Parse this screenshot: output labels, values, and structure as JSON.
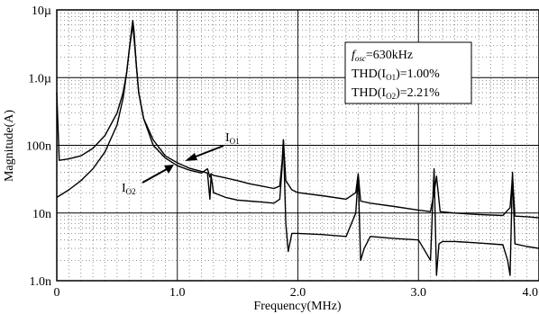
{
  "chart_data": {
    "type": "line",
    "xlabel": "Frequency(MHz)",
    "ylabel": "Magnitude(A)",
    "x_scale": "linear",
    "y_scale": "log",
    "xlim": [
      0,
      4.0
    ],
    "ylim": [
      1e-09,
      1e-05
    ],
    "x_ticks": [
      {
        "value": 0,
        "label": "0"
      },
      {
        "value": 1.0,
        "label": "1.0"
      },
      {
        "value": 2.0,
        "label": "2.0"
      },
      {
        "value": 3.0,
        "label": "3.0"
      },
      {
        "value": 4.0,
        "label": "4.0"
      }
    ],
    "y_ticks": [
      {
        "value": 1e-05,
        "label": "10µ"
      },
      {
        "value": 1e-06,
        "label": "1.0µ"
      },
      {
        "value": 1e-07,
        "label": "100n"
      },
      {
        "value": 1e-08,
        "label": "10n"
      },
      {
        "value": 1e-09,
        "label": "1.0n"
      }
    ],
    "grid": true,
    "series": [
      {
        "name": "IO1",
        "label_main": "I",
        "label_sub": "O1",
        "color": "#000000",
        "x": [
          0.0,
          0.02,
          0.1,
          0.2,
          0.3,
          0.4,
          0.5,
          0.55,
          0.58,
          0.6,
          0.62,
          0.63,
          0.64,
          0.66,
          0.68,
          0.72,
          0.8,
          0.9,
          1.0,
          1.1,
          1.2,
          1.25,
          1.27,
          1.28,
          1.3,
          1.4,
          1.5,
          1.6,
          1.7,
          1.8,
          1.85,
          1.87,
          1.88,
          1.9,
          1.95,
          2.0,
          2.2,
          2.4,
          2.48,
          2.5,
          2.52,
          2.6,
          2.8,
          3.0,
          3.1,
          3.13,
          3.15,
          3.18,
          3.3,
          3.5,
          3.7,
          3.76,
          3.78,
          3.8,
          3.9,
          4.0
        ],
        "y": [
          6e-07,
          6e-08,
          6.3e-08,
          7e-08,
          9e-08,
          1.4e-07,
          3e-07,
          6e-07,
          1.2e-06,
          2.5e-06,
          5e-06,
          7e-06,
          5e-06,
          1.5e-06,
          6e-07,
          2.5e-07,
          1e-07,
          6.5e-08,
          5e-08,
          4.3e-08,
          3.9e-08,
          4.5e-08,
          3.4e-08,
          3.8e-08,
          3.6e-08,
          3.3e-08,
          3e-08,
          2.7e-08,
          2.5e-08,
          2.3e-08,
          2.5e-08,
          6e-08,
          1.2e-07,
          3e-08,
          2.2e-08,
          2e-08,
          1.8e-08,
          1.6e-08,
          2e-08,
          3.8e-08,
          1.5e-08,
          1.4e-08,
          1.25e-08,
          1.1e-08,
          1.05e-08,
          2e-08,
          3.5e-08,
          1.05e-08,
          1e-08,
          9.5e-09,
          9.2e-09,
          1.2e-08,
          3.5e-08,
          9e-09,
          8.8e-09,
          8.5e-09
        ]
      },
      {
        "name": "IO2",
        "label_main": "I",
        "label_sub": "O2",
        "color": "#000000",
        "x": [
          0.0,
          0.1,
          0.2,
          0.3,
          0.4,
          0.5,
          0.55,
          0.58,
          0.6,
          0.62,
          0.63,
          0.64,
          0.66,
          0.68,
          0.72,
          0.8,
          0.9,
          1.0,
          1.1,
          1.2,
          1.25,
          1.27,
          1.28,
          1.3,
          1.4,
          1.5,
          1.6,
          1.7,
          1.8,
          1.85,
          1.87,
          1.88,
          1.9,
          1.92,
          1.95,
          2.0,
          2.2,
          2.4,
          2.48,
          2.5,
          2.52,
          2.55,
          2.6,
          2.8,
          3.0,
          3.1,
          3.13,
          3.15,
          3.17,
          3.2,
          3.3,
          3.5,
          3.7,
          3.74,
          3.76,
          3.78,
          3.8,
          3.9,
          4.0
        ],
        "y": [
          1.7e-08,
          2.2e-08,
          3e-08,
          4.5e-08,
          8e-08,
          2e-07,
          5e-07,
          1.2e-06,
          2.5e-06,
          4.5e-06,
          6e-06,
          4e-06,
          1.5e-06,
          6e-07,
          2.5e-07,
          1.2e-07,
          7e-08,
          5.5e-08,
          4.6e-08,
          4.1e-08,
          3.9e-08,
          1.6e-08,
          3.6e-08,
          2e-08,
          1.7e-08,
          1.55e-08,
          1.5e-08,
          1.45e-08,
          1.4e-08,
          1.6e-08,
          5e-08,
          1.2e-07,
          7e-09,
          2.7e-09,
          5e-09,
          5e-09,
          4.8e-09,
          4.5e-09,
          1e-08,
          3.5e-08,
          2e-09,
          3e-09,
          4.5e-09,
          4.2e-09,
          4e-09,
          2e-09,
          4.5e-08,
          1.2e-09,
          3.5e-09,
          3.8e-09,
          3.8e-09,
          3.6e-09,
          3.4e-09,
          2e-09,
          1.2e-09,
          4e-08,
          3.5e-09,
          3.2e-09,
          3e-09
        ]
      }
    ],
    "annotation_box": {
      "line1_italic": "f",
      "line1_sub": "osc",
      "line1_rest": "=630kHz",
      "line2_prefix": "THD(I",
      "line2_sub": "O1",
      "line2_suffix": ")=1.00%",
      "line3_prefix": "THD(I",
      "line3_sub": "O2",
      "line3_suffix": ")=2.21%"
    }
  }
}
